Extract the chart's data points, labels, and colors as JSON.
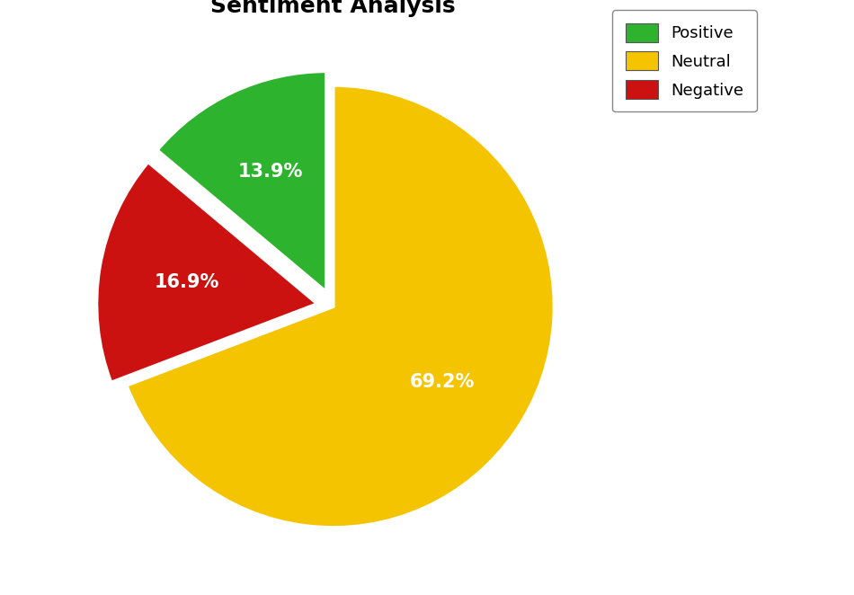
{
  "title": "Sentiment Analysis",
  "title_fontsize": 18,
  "title_fontweight": "bold",
  "slices": [
    {
      "label": "Neutral",
      "value": 69.2,
      "color": "#f5c400",
      "explode": 0.0
    },
    {
      "label": "Negative",
      "value": 16.9,
      "color": "#cc1111",
      "explode": 0.07
    },
    {
      "label": "Positive",
      "value": 13.9,
      "color": "#2db32d",
      "explode": 0.07
    }
  ],
  "legend_order": [
    "Positive",
    "Neutral",
    "Negative"
  ],
  "autopct_fontsize": 15,
  "autopct_color": "white",
  "autopct_fontweight": "bold",
  "wedge_edgecolor": "white",
  "wedge_linewidth": 3.0,
  "startangle": 90,
  "counterclock": false,
  "legend_fontsize": 13,
  "background_color": "#ffffff",
  "pctdistance": 0.6
}
